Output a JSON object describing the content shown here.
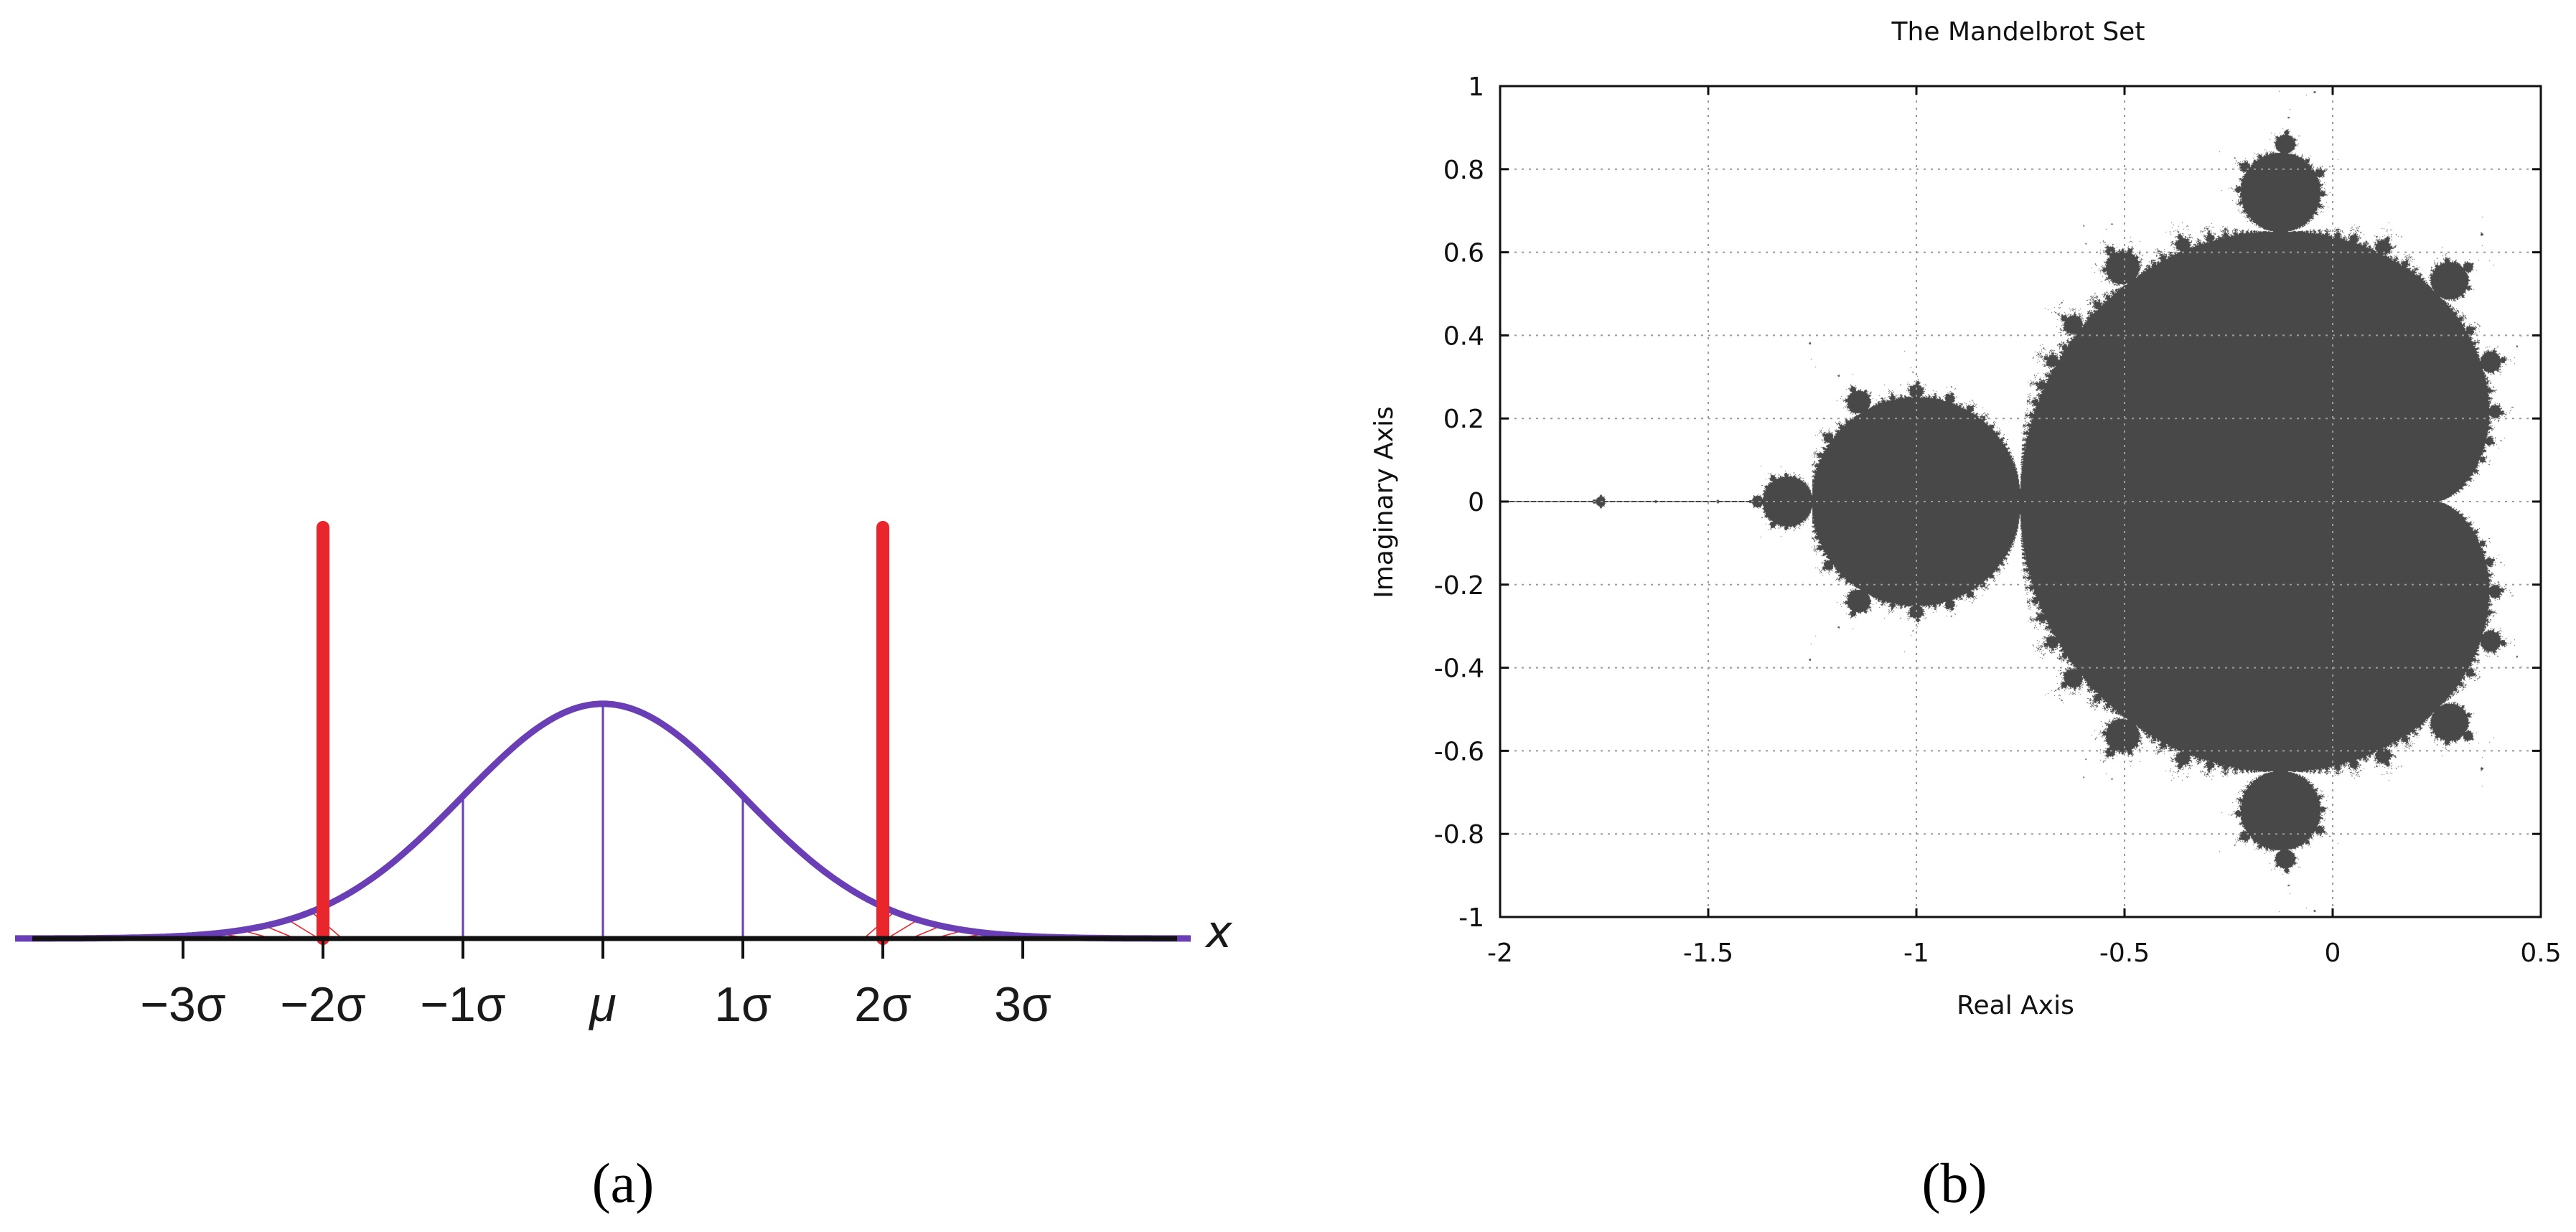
{
  "panels": [
    {
      "caption": "(a)",
      "chart_data": {
        "type": "line",
        "title": "",
        "xlabel": "x",
        "ylabel": "",
        "xlim": [
          -4.2,
          4.2
        ],
        "ylim": [
          0,
          0.4
        ],
        "tick_values": [
          -3,
          -2,
          -1,
          0,
          1,
          2,
          3
        ],
        "tick_labels": [
          "−3σ",
          "−2σ",
          "−1σ",
          "μ",
          "1σ",
          "2σ",
          "3σ"
        ],
        "series": [
          {
            "function": "standard normal density",
            "sigma": 1,
            "mean": 0,
            "x_range": [
              -4.2,
              4.2
            ]
          }
        ],
        "guide_lines_x": [
          -1,
          0,
          1
        ],
        "critical_bars_x": [
          -2,
          2
        ],
        "shaded_tails": [
          [
            -3,
            -2
          ],
          [
            2,
            3
          ]
        ],
        "colors": {
          "curve": "#6a3fb5",
          "critical": "#e8262b",
          "hatch": "#e8262b",
          "axis": "#111111"
        },
        "grid": false,
        "legend": "none"
      }
    },
    {
      "caption": "(b)",
      "chart_data": {
        "type": "scatter",
        "title": "The Mandelbrot Set",
        "xlabel": "Real Axis",
        "ylabel": "Imaginary Axis",
        "xlim": [
          -2,
          0.5
        ],
        "ylim": [
          -1,
          1
        ],
        "x_ticks": [
          -2,
          -1.5,
          -1,
          -0.5,
          0,
          0.5
        ],
        "y_ticks": [
          1,
          0.8,
          0.6,
          0.4,
          0.2,
          0,
          -0.2,
          -0.4,
          -0.6,
          -0.8,
          -1
        ],
        "x_tick_labels": [
          "-2",
          "-1.5",
          "-1",
          "-0.5",
          "0",
          "0.5"
        ],
        "y_tick_labels": [
          "1",
          "0.8",
          "0.6",
          "0.4",
          "0.2",
          "0",
          "-0.2",
          "-0.4",
          "-0.6",
          "-0.8",
          "-1"
        ],
        "set_definition": "points c with |z| bounded under z -> z^2 + c",
        "components": {
          "main_cardioid": {
            "center": [
              0.25,
              0
            ],
            "param": 0.5
          },
          "period2_bulb": {
            "center": [
              -1,
              0
            ],
            "radius": 0.25
          },
          "bulbs": [
            {
              "center": [
                -0.122,
                0.745
              ],
              "radius": 0.095
            },
            {
              "center": [
                -0.122,
                -0.745
              ],
              "radius": 0.095
            },
            {
              "center": [
                -1.3107,
                0
              ],
              "radius": 0.058
            },
            {
              "center": [
                0.282,
                0.53
              ],
              "radius": 0.045
            },
            {
              "center": [
                0.282,
                -0.53
              ],
              "radius": 0.045
            },
            {
              "center": [
                -0.503,
                0.563
              ],
              "radius": 0.042
            },
            {
              "center": [
                -0.503,
                -0.563
              ],
              "radius": 0.042
            },
            {
              "center": [
                -0.39,
                0.6
              ],
              "radius": 0.03
            },
            {
              "center": [
                -0.39,
                -0.6
              ],
              "radius": 0.03
            },
            {
              "center": [
                -1.757,
                0
              ],
              "radius": 0.012
            }
          ],
          "antenna_x": [
            -2,
            -1.31
          ]
        },
        "colors": {
          "set": "#484848",
          "grid": "#9a9a9a",
          "frame": "#111111"
        },
        "grid": true,
        "legend": "none"
      }
    }
  ]
}
